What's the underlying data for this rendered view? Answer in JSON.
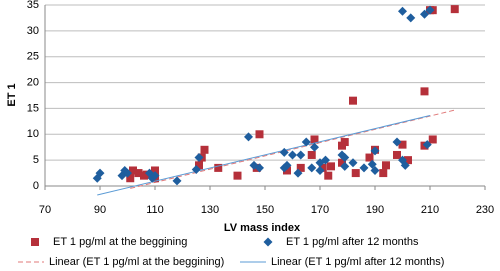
{
  "chart_data": {
    "type": "scatter",
    "x_label": "LV mass index",
    "y_label": "ET 1",
    "xlim": [
      70,
      230
    ],
    "xticks": [
      70,
      90,
      110,
      130,
      150,
      170,
      190,
      210,
      230
    ],
    "ylim": [
      0,
      35
    ],
    "yticks": [
      0,
      5,
      10,
      15,
      20,
      25,
      30,
      35
    ],
    "grid": true,
    "series": [
      {
        "name": "ET 1 pg/ml at the beggining",
        "color": "#b5303a",
        "marker": "square",
        "trendline": {
          "name": "Linear (ET 1 pg/ml at the beggining)",
          "color": "#e07a7a",
          "dashed": true
        },
        "x": [
          101,
          102,
          104,
          106,
          107,
          110,
          110,
          126,
          127,
          128,
          133,
          140,
          147,
          148,
          158,
          163,
          167,
          168,
          171,
          173,
          174,
          178,
          178,
          179,
          182,
          183,
          188,
          190,
          193,
          194,
          198,
          200,
          202,
          208,
          208,
          210,
          211,
          211,
          219
        ],
        "values": [
          1.5,
          3,
          2.5,
          2,
          2.2,
          3,
          1.5,
          4,
          5.5,
          7,
          3.5,
          2,
          3.5,
          10,
          3,
          3.5,
          6,
          9,
          3.5,
          2,
          3.8,
          4.5,
          7.8,
          8.5,
          16.5,
          2.5,
          5.5,
          7,
          2.5,
          4,
          6,
          8,
          5,
          18.3,
          7.8,
          34,
          34,
          9,
          34.2
        ]
      },
      {
        "name": "ET 1 pg/ml after 12 months",
        "color": "#1f5e9e",
        "marker": "diamond",
        "trendline": {
          "name": "Linear (ET 1 pg/ml after 12 months)",
          "color": "#5b9bd5",
          "dashed": false
        },
        "x": [
          89,
          90,
          98,
          99,
          100,
          108,
          109,
          110,
          118,
          125,
          126,
          144,
          146,
          148,
          157,
          157,
          158,
          160,
          162,
          163,
          165,
          167,
          168,
          170,
          170,
          172,
          178,
          179,
          179,
          182,
          186,
          189,
          190,
          190,
          198,
          200,
          200,
          201,
          203,
          208,
          209,
          210
        ],
        "values": [
          1.5,
          2.5,
          2,
          3,
          2.5,
          2.5,
          1.5,
          2,
          1,
          3.2,
          5.5,
          9.5,
          4,
          3.5,
          3.5,
          6.5,
          4,
          6,
          2.5,
          6,
          8.5,
          3.5,
          7.5,
          3,
          4.5,
          5,
          6,
          5.5,
          3.8,
          4.5,
          3.5,
          4.2,
          3,
          6.8,
          8.5,
          33.8,
          5,
          4,
          32.5,
          33.2,
          8,
          34
        ]
      }
    ]
  }
}
